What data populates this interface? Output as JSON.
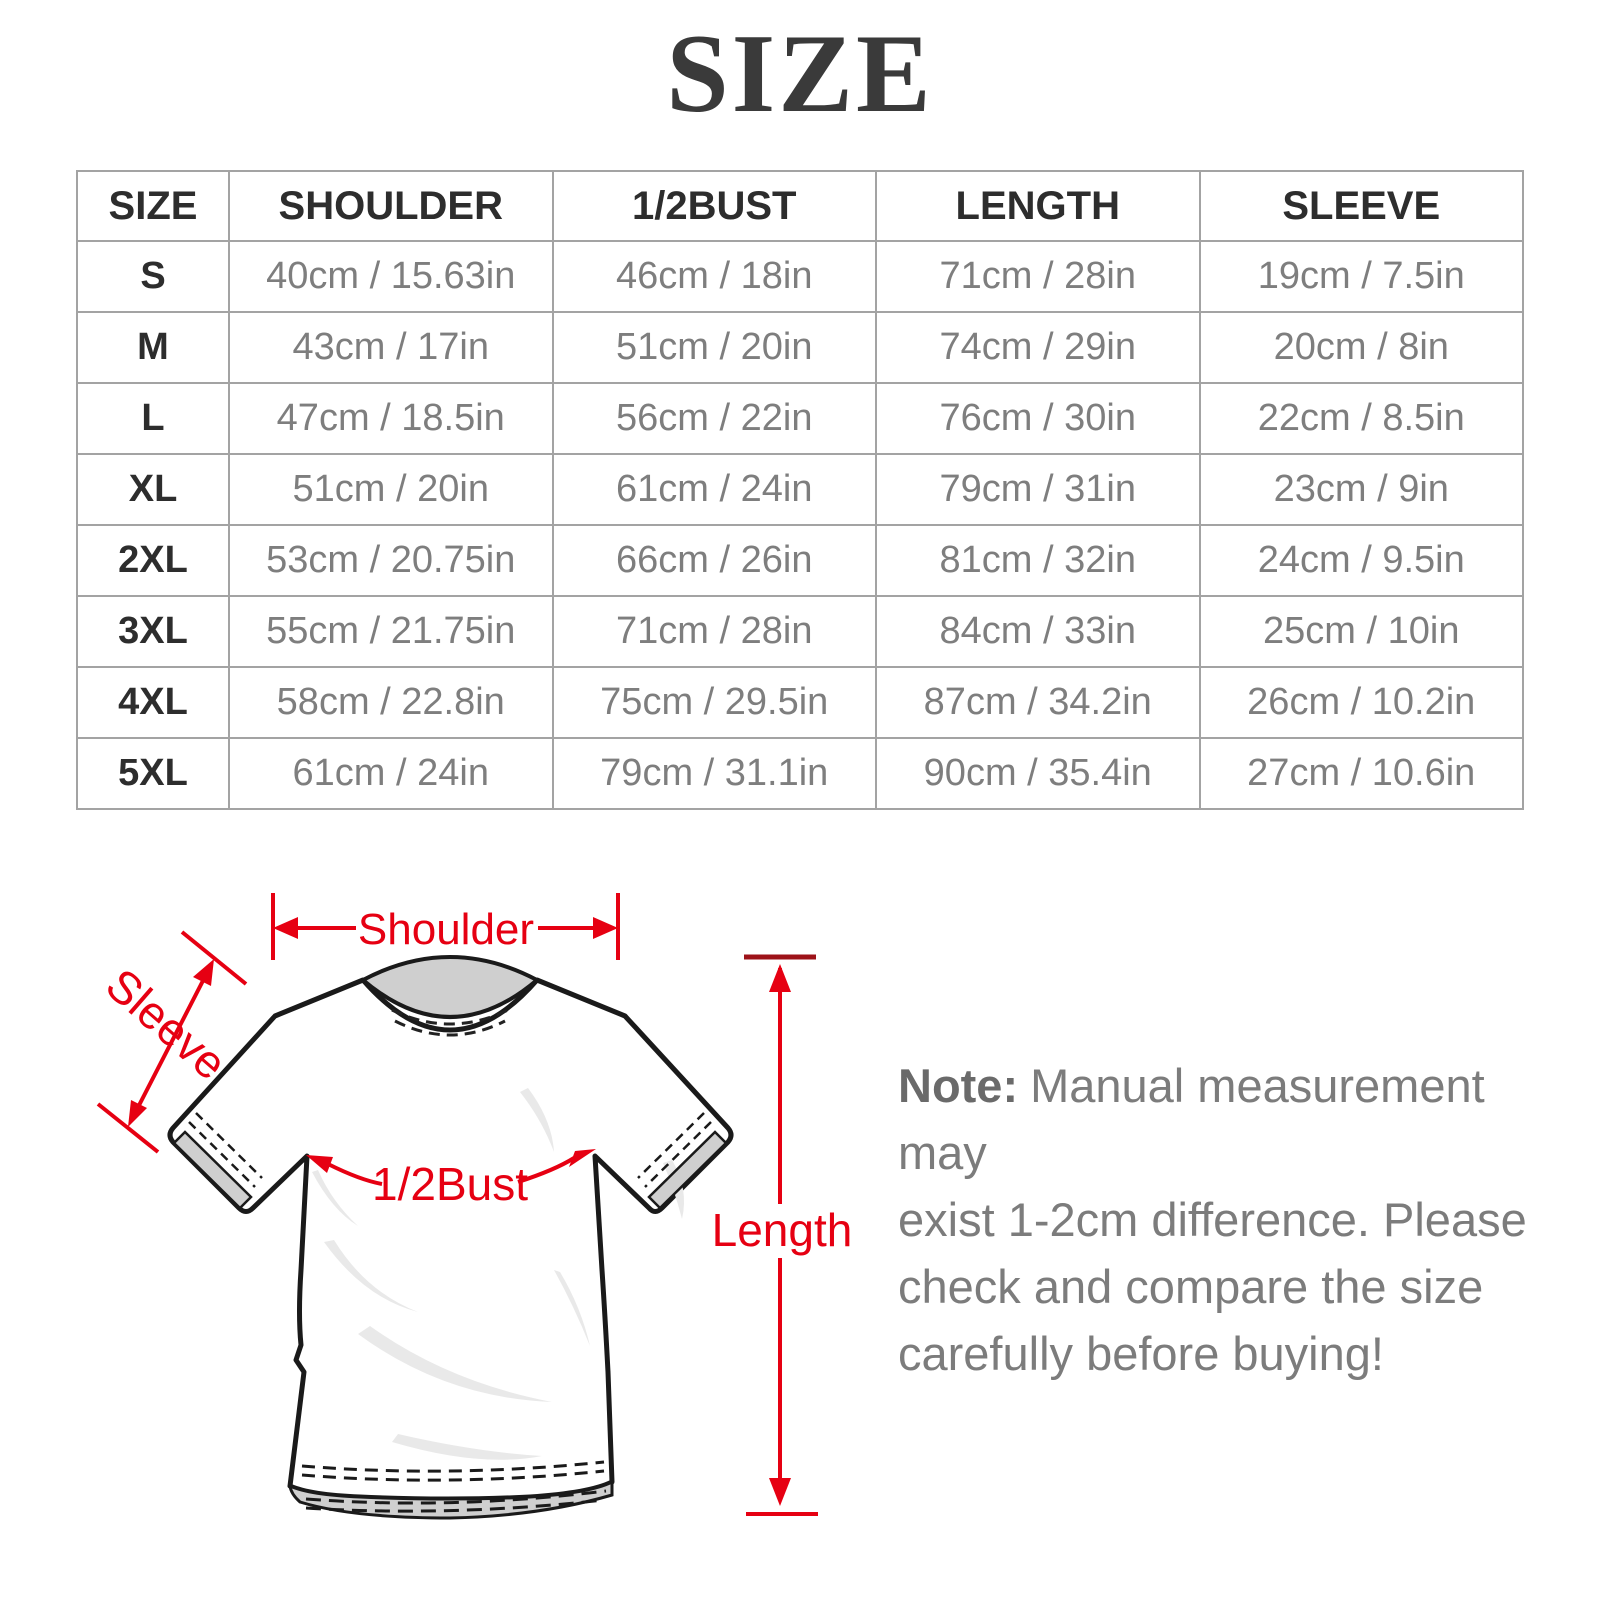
{
  "title": "SIZE",
  "table": {
    "headers": [
      "SIZE",
      "SHOULDER",
      "1/2BUST",
      "LENGTH",
      "SLEEVE"
    ],
    "rows": [
      {
        "size": "S",
        "cells": [
          "40cm / 15.63in",
          "46cm / 18in",
          "71cm / 28in",
          "19cm / 7.5in"
        ]
      },
      {
        "size": "M",
        "cells": [
          "43cm / 17in",
          "51cm / 20in",
          "74cm / 29in",
          "20cm / 8in"
        ]
      },
      {
        "size": "L",
        "cells": [
          "47cm / 18.5in",
          "56cm / 22in",
          "76cm / 30in",
          "22cm / 8.5in"
        ]
      },
      {
        "size": "XL",
        "cells": [
          "51cm / 20in",
          "61cm / 24in",
          "79cm / 31in",
          "23cm / 9in"
        ]
      },
      {
        "size": "2XL",
        "cells": [
          "53cm / 20.75in",
          "66cm / 26in",
          "81cm / 32in",
          "24cm / 9.5in"
        ]
      },
      {
        "size": "3XL",
        "cells": [
          "55cm / 21.75in",
          "71cm / 28in",
          "84cm / 33in",
          "25cm / 10in"
        ]
      },
      {
        "size": "4XL",
        "cells": [
          "58cm / 22.8in",
          "75cm / 29.5in",
          "87cm / 34.2in",
          "26cm / 10.2in"
        ]
      },
      {
        "size": "5XL",
        "cells": [
          "61cm / 24in",
          "79cm / 31.1in",
          "90cm / 35.4in",
          "27cm / 10.6in"
        ]
      }
    ]
  },
  "diagram": {
    "labels": {
      "shoulder": "Shoulder",
      "sleeve": "Sleeve",
      "half_bust": "1/2Bust",
      "length": "Length"
    },
    "annotation_color": "#e60012"
  },
  "note": {
    "label": "Note:",
    "line1": "Manual measurement may",
    "line2": "exist 1-2cm difference. Please",
    "line3": "check and compare the size",
    "line4": "carefully before buying!"
  },
  "chart_data": {
    "type": "table",
    "title": "SIZE",
    "columns": [
      "SIZE",
      "SHOULDER",
      "1/2BUST",
      "LENGTH",
      "SLEEVE"
    ],
    "rows": [
      [
        "S",
        "40cm / 15.63in",
        "46cm / 18in",
        "71cm / 28in",
        "19cm / 7.5in"
      ],
      [
        "M",
        "43cm / 17in",
        "51cm / 20in",
        "74cm / 29in",
        "20cm / 8in"
      ],
      [
        "L",
        "47cm / 18.5in",
        "56cm / 22in",
        "76cm / 30in",
        "22cm / 8.5in"
      ],
      [
        "XL",
        "51cm / 20in",
        "61cm / 24in",
        "79cm / 31in",
        "23cm / 9in"
      ],
      [
        "2XL",
        "53cm / 20.75in",
        "66cm / 26in",
        "81cm / 32in",
        "24cm / 9.5in"
      ],
      [
        "3XL",
        "55cm / 21.75in",
        "71cm / 28in",
        "84cm / 33in",
        "25cm / 10in"
      ],
      [
        "4XL",
        "58cm / 22.8in",
        "75cm / 29.5in",
        "87cm / 34.2in",
        "26cm / 10.2in"
      ],
      [
        "5XL",
        "61cm / 24in",
        "79cm / 31.1in",
        "90cm / 35.4in",
        "27cm / 10.6in"
      ]
    ]
  }
}
